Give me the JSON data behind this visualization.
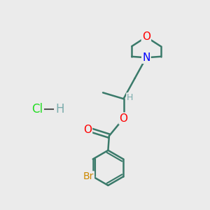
{
  "background_color": "#ebebeb",
  "bond_color": "#3a7a6a",
  "bond_width": 1.8,
  "atom_colors": {
    "O": "#ff0000",
    "N": "#0000ff",
    "Br": "#cc8800",
    "Cl": "#22dd22",
    "H": "#7aacac",
    "C": "#3a7a6a"
  },
  "font_size": 10,
  "fig_width": 3.0,
  "fig_height": 3.0,
  "dpi": 100
}
